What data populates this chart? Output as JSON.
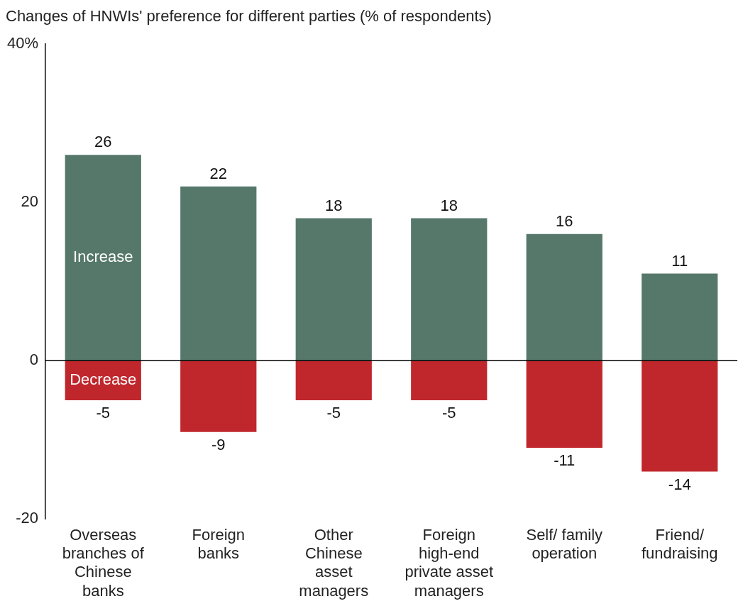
{
  "chart_data": {
    "type": "bar",
    "title": "Changes of HNWIs' preference for different parties (% of respondents)",
    "categories": [
      "Overseas branches of Chinese banks",
      "Foreign banks",
      "Other Chinese asset managers",
      "Foreign high-end private asset managers",
      "Self/ family operation",
      "Friend/ fundraising"
    ],
    "series": [
      {
        "name": "Increase",
        "color": "#56786b",
        "values": [
          26,
          22,
          18,
          18,
          16,
          11
        ]
      },
      {
        "name": "Decrease",
        "color": "#c0272d",
        "values": [
          -5,
          -9,
          -5,
          -5,
          -11,
          -14
        ]
      }
    ],
    "stacked": true,
    "ylim": [
      -20,
      40
    ],
    "yticks": [
      {
        "value": 40,
        "label": "40%"
      },
      20,
      0,
      -20
    ],
    "ref_lines": [
      {
        "axis": "y",
        "value": 0,
        "color": "#000000"
      }
    ],
    "legend": false,
    "data_labels": true
  }
}
